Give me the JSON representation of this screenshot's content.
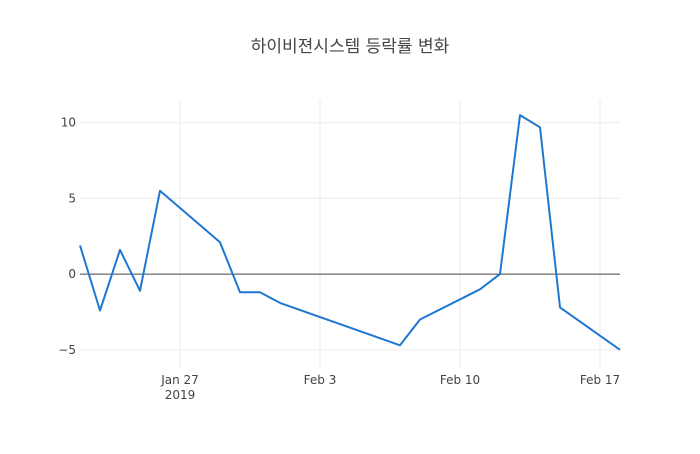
{
  "chart_data": {
    "type": "line",
    "title": "하이비젼시스템 등락률 변화",
    "xlabel": "",
    "ylabel": "",
    "x_range": [
      "2019-01-22",
      "2019-02-18"
    ],
    "ylim": [
      -6.2,
      11.5
    ],
    "y_ticks": [
      10,
      5,
      0,
      -5
    ],
    "y_tick_labels": [
      "10",
      "5",
      "0",
      "−5"
    ],
    "x_ticks": [
      {
        "date": "2019-01-27",
        "label": "Jan 27",
        "sublabel": "2019"
      },
      {
        "date": "2019-02-03",
        "label": "Feb 3",
        "sublabel": ""
      },
      {
        "date": "2019-02-10",
        "label": "Feb 10",
        "sublabel": ""
      },
      {
        "date": "2019-02-17",
        "label": "Feb 17",
        "sublabel": ""
      }
    ],
    "grid": true,
    "zero_line": true,
    "series": [
      {
        "color": "#1f77d4",
        "x": [
          "2019-01-22",
          "2019-01-23",
          "2019-01-24",
          "2019-01-25",
          "2019-01-26",
          "2019-01-29",
          "2019-01-30",
          "2019-01-31",
          "2019-02-01",
          "2019-02-07",
          "2019-02-08",
          "2019-02-11",
          "2019-02-12",
          "2019-02-13",
          "2019-02-14",
          "2019-02-15",
          "2019-02-18"
        ],
        "y": [
          1.9,
          -2.4,
          1.6,
          -1.1,
          5.5,
          2.1,
          -1.2,
          -1.2,
          -1.9,
          -4.7,
          -3.0,
          -1.0,
          0.0,
          10.5,
          9.7,
          -2.2,
          -5.0
        ]
      }
    ]
  }
}
